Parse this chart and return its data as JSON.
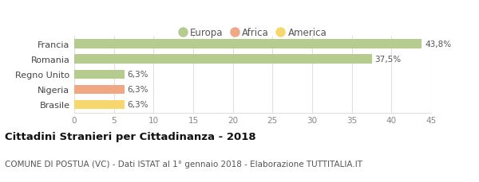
{
  "categories": [
    "Brasile",
    "Nigeria",
    "Regno Unito",
    "Romania",
    "Francia"
  ],
  "values": [
    6.3,
    6.3,
    6.3,
    37.5,
    43.8
  ],
  "labels": [
    "6,3%",
    "6,3%",
    "6,3%",
    "37,5%",
    "43,8%"
  ],
  "bar_colors": [
    "#f5d76e",
    "#f0a884",
    "#b5cc8e",
    "#b5cc8e",
    "#b5cc8e"
  ],
  "legend_items": [
    {
      "label": "Europa",
      "color": "#b5cc8e"
    },
    {
      "label": "Africa",
      "color": "#f0a884"
    },
    {
      "label": "America",
      "color": "#f5d76e"
    }
  ],
  "xlim": [
    0,
    45
  ],
  "xticks": [
    0,
    5,
    10,
    15,
    20,
    25,
    30,
    35,
    40,
    45
  ],
  "title": "Cittadini Stranieri per Cittadinanza - 2018",
  "subtitle": "COMUNE DI POSTUA (VC) - Dati ISTAT al 1° gennaio 2018 - Elaborazione TUTTITALIA.IT",
  "background_color": "#ffffff",
  "grid_color": "#e0e0e0",
  "bar_height": 0.6,
  "label_fontsize": 7.5,
  "tick_fontsize": 7.5,
  "ylabel_fontsize": 8.0,
  "title_fontsize": 9.5,
  "subtitle_fontsize": 7.5,
  "legend_fontsize": 8.5
}
